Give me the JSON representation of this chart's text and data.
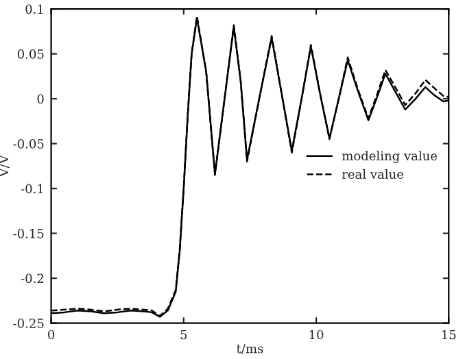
{
  "chart_data": {
    "type": "line",
    "xlabel": "t/ms",
    "ylabel": "V/V",
    "x": [
      0,
      0.5,
      1,
      1.5,
      2,
      2.5,
      3,
      3.5,
      3.8,
      4.1,
      4.4,
      4.7,
      4.85,
      5.0,
      5.15,
      5.3,
      5.5,
      5.85,
      6.18,
      6.5,
      6.89,
      7.15,
      7.39,
      7.85,
      8.32,
      8.7,
      9.08,
      9.45,
      9.8,
      10.15,
      10.5,
      10.85,
      11.19,
      11.58,
      11.97,
      12.3,
      12.61,
      13.0,
      13.36,
      13.75,
      14.12,
      14.45,
      14.8,
      15
    ],
    "series": [
      {
        "name": "modeling value",
        "color": "#000000",
        "line_style": "solid",
        "values": [
          -0.239,
          -0.238,
          -0.236,
          -0.237,
          -0.239,
          -0.238,
          -0.236,
          -0.237,
          -0.238,
          -0.243,
          -0.236,
          -0.215,
          -0.17,
          -0.1,
          -0.02,
          0.05,
          0.09,
          0.03,
          -0.084,
          -0.01,
          0.08,
          0.02,
          -0.068,
          0.0,
          0.068,
          0.005,
          -0.058,
          0.0,
          0.058,
          0.005,
          -0.044,
          0.0,
          0.043,
          0.008,
          -0.024,
          0.002,
          0.028,
          0.007,
          -0.012,
          0.0,
          0.013,
          0.004,
          -0.003,
          -0.002
        ]
      },
      {
        "name": "real value",
        "color": "#000000",
        "line_style": "dashed",
        "values": [
          -0.236,
          -0.235,
          -0.234,
          -0.235,
          -0.237,
          -0.235,
          -0.234,
          -0.235,
          -0.236,
          -0.242,
          -0.234,
          -0.213,
          -0.168,
          -0.1,
          -0.02,
          0.05,
          0.092,
          0.03,
          -0.085,
          -0.01,
          0.082,
          0.02,
          -0.07,
          0.0,
          0.07,
          0.005,
          -0.06,
          0.0,
          0.06,
          0.005,
          -0.045,
          0.0,
          0.046,
          0.01,
          -0.022,
          0.005,
          0.032,
          0.012,
          -0.007,
          0.006,
          0.021,
          0.012,
          0.003,
          0.002
        ]
      }
    ],
    "xlim": [
      0,
      15
    ],
    "xticks": [
      0,
      5,
      10,
      15
    ],
    "ylim": [
      -0.25,
      0.1
    ],
    "yticks": [
      {
        "value": -0.25,
        "label": "-0.25"
      },
      {
        "value": -0.2,
        "label": "-0.2"
      },
      {
        "value": -0.15,
        "label": "-0.15"
      },
      {
        "value": -0.1,
        "label": "-0.1"
      },
      {
        "value": -0.05,
        "label": "-0.05"
      },
      0,
      {
        "value": 0.05,
        "label": "0.05"
      },
      0.1
    ],
    "grid": false,
    "legend": "center right",
    "marker": "none"
  }
}
